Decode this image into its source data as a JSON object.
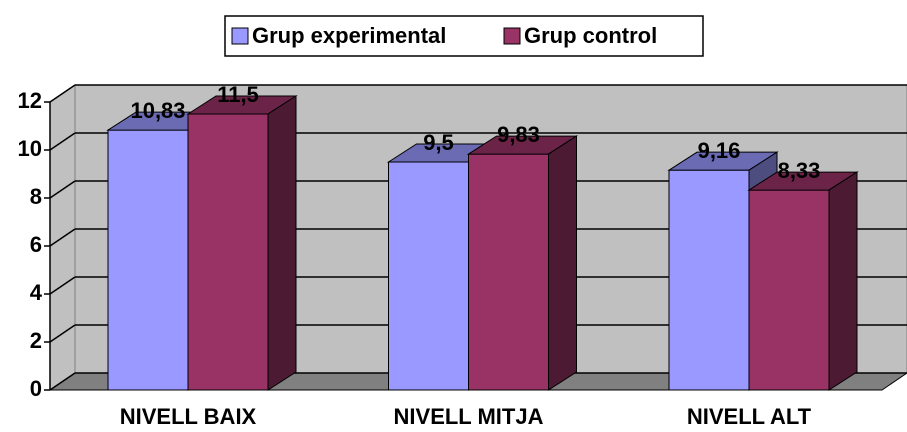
{
  "chart_data": {
    "type": "bar3d",
    "categories": [
      "NIVELL BAIX",
      "NIVELL MITJA",
      "NIVELL ALT"
    ],
    "series": [
      {
        "name": "Grup experimental",
        "color": "#9999ff",
        "values": [
          10.83,
          9.5,
          9.16
        ],
        "value_labels": [
          "10,83",
          "9,5",
          "9,16"
        ]
      },
      {
        "name": "Grup control",
        "color": "#993366",
        "values": [
          11.5,
          9.83,
          8.33
        ],
        "value_labels": [
          "11,5",
          "9,83",
          "8,33"
        ]
      }
    ],
    "ylim": [
      0,
      12
    ],
    "yticks": [
      0,
      2,
      4,
      6,
      8,
      10,
      12
    ],
    "grid": true,
    "legend": "top"
  }
}
